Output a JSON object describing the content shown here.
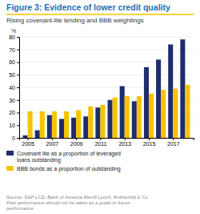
{
  "chart_data": {
    "type": "bar",
    "title": "Figure 3: Evidence of lower credit quality",
    "subtitle": "Rising covenant-lite lending and BBB weightings",
    "ylabel": "%",
    "x": [
      2005,
      2006,
      2007,
      2008,
      2009,
      2010,
      2011,
      2012,
      2013,
      2014,
      2015,
      2016,
      2017,
      2018
    ],
    "series": [
      {
        "name": "Covenant lite as a proportion of leveraged\nloans outstanding",
        "color": "#1f2d6e",
        "values": [
          2,
          6,
          18,
          15,
          16,
          17,
          24,
          30,
          41,
          29,
          56,
          62,
          74,
          78
        ]
      },
      {
        "name": "BBB bonds as a proportion of outstanding",
        "color": "#f5c400",
        "values": [
          21,
          21,
          21,
          21,
          22,
          25,
          26,
          32,
          33,
          33,
          35,
          38,
          39,
          42
        ]
      }
    ],
    "xlim": [
      2004.3,
      2018.7
    ],
    "xticks": [
      2005,
      2007,
      2009,
      2011,
      2013,
      2015,
      2017
    ],
    "ylim": [
      0,
      80
    ],
    "yticks": [
      0,
      10,
      20,
      30,
      40,
      50,
      60,
      70,
      80
    ],
    "grid": true,
    "legend": "bottom",
    "annotations": [
      "Source: S&P LCD, Bank of America Merrill Lynch, Rothschild & Co\nPast performance should not be taken as a guide to future\nperformance."
    ]
  }
}
